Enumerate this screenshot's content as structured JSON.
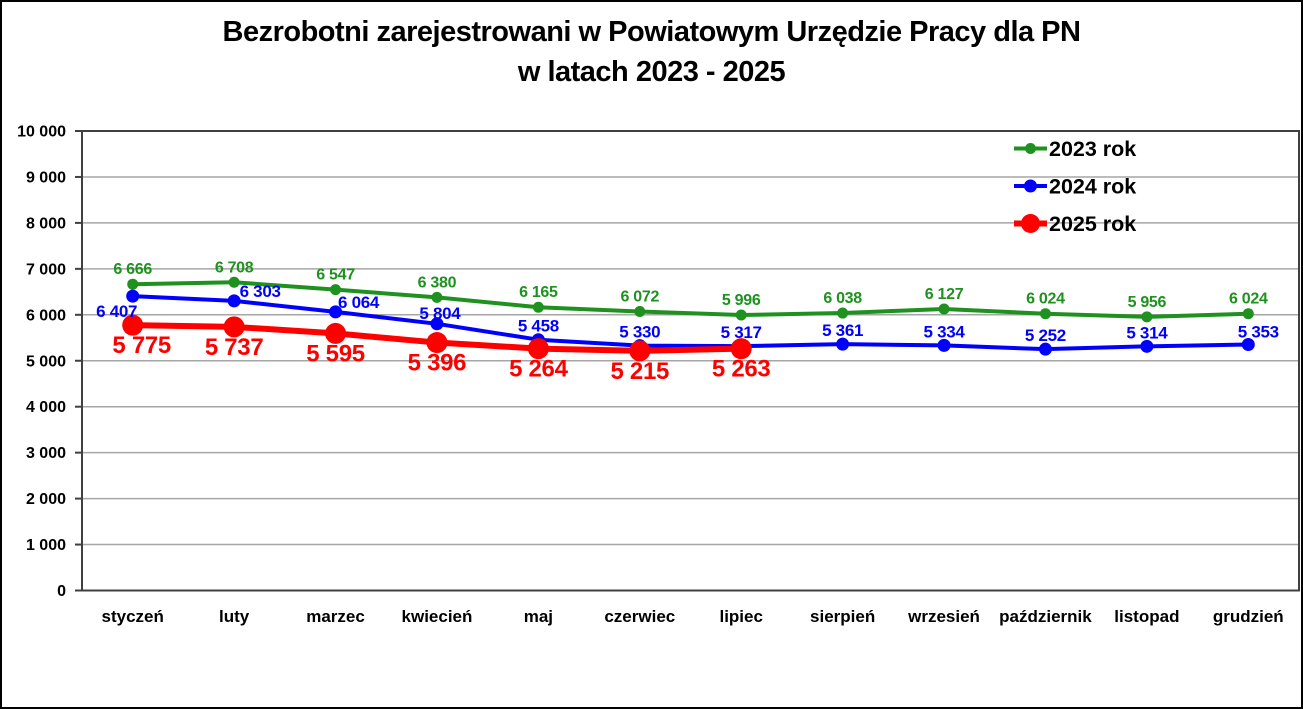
{
  "chart_data": {
    "type": "line",
    "title": "Bezrobotni zarejestrowani w Powiatowym Urzędzie Pracy dla PN",
    "subtitle": "w latach 2023 - 2025",
    "categories": [
      "styczeń",
      "luty",
      "marzec",
      "kwiecień",
      "maj",
      "czerwiec",
      "lipiec",
      "sierpień",
      "wrzesień",
      "październik",
      "listopad",
      "grudzień"
    ],
    "ylim": [
      0,
      10000
    ],
    "ytick_step": 1000,
    "ytick_labels": [
      "0",
      "1 000",
      "2 000",
      "3 000",
      "4 000",
      "5 000",
      "6 000",
      "7 000",
      "8 000",
      "9 000",
      "10 000"
    ],
    "grid": true,
    "legend_position": "top-right",
    "series": [
      {
        "name": "2023 rok",
        "color": "#1E911E",
        "values": [
          6666,
          6708,
          6547,
          6380,
          6165,
          6072,
          5996,
          6038,
          6127,
          6024,
          5956,
          6024
        ],
        "labels": [
          "6 666",
          "6 708",
          "6 547",
          "6 380",
          "6 165",
          "6 072",
          "5 996",
          "6 038",
          "6 127",
          "6 024",
          "5 956",
          "6 024"
        ],
        "label_position": "above"
      },
      {
        "name": "2024 rok",
        "color": "#0000FF",
        "values": [
          6407,
          6303,
          6064,
          5804,
          5458,
          5330,
          5317,
          5361,
          5334,
          5252,
          5314,
          5353
        ],
        "labels": [
          "6 407",
          "6 303",
          "6 064",
          "5 804",
          "5 458",
          "5 330",
          "5 317",
          "5 361",
          "5 334",
          "5 252",
          "5 314",
          "5 353"
        ],
        "label_position": "above"
      },
      {
        "name": "2025 rok",
        "color": "#FF0000",
        "values": [
          5775,
          5737,
          5595,
          5396,
          5264,
          5215,
          5263
        ],
        "labels": [
          "5 775",
          "5 737",
          "5 595",
          "5 396",
          "5 264",
          "5 215",
          "5 263"
        ],
        "label_position": "below"
      }
    ],
    "colors": {
      "axis": "#404040",
      "grid": "#A6A6A6",
      "text": "#000000",
      "background": "#FFFFFF"
    }
  }
}
